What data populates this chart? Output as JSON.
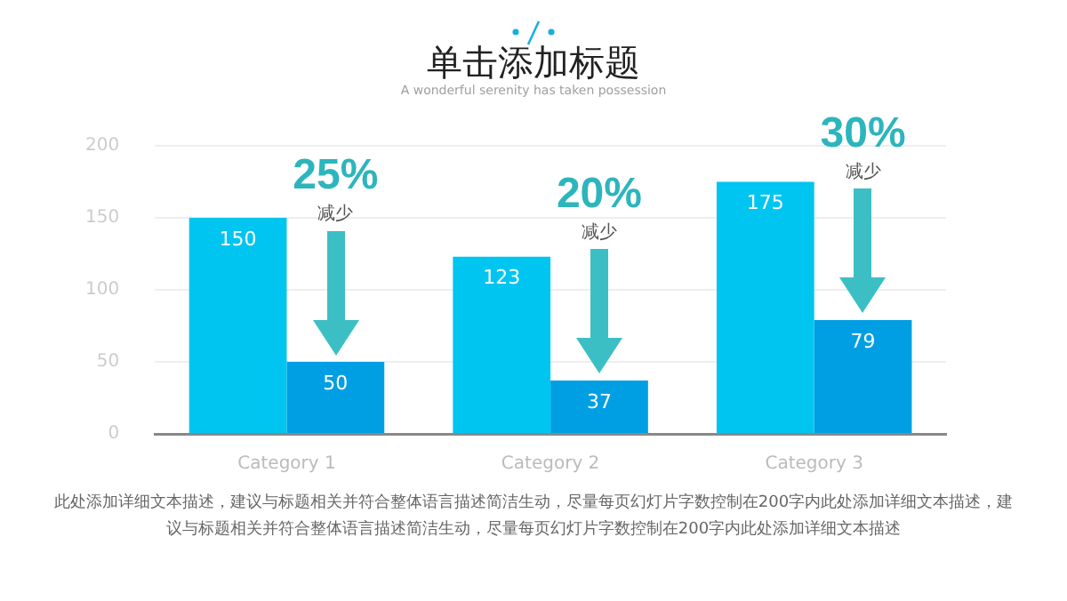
{
  "chart_data": {
    "type": "bar",
    "title": "单击添加标题",
    "subtitle": "A wonderful serenity has taken possession",
    "categories": [
      "Category 1",
      "Category 2",
      "Category 3"
    ],
    "series": [
      {
        "color": "#00c5f0",
        "values": [
          150,
          123,
          175
        ]
      },
      {
        "color": "#009fe3",
        "values": [
          50,
          37,
          79
        ]
      }
    ],
    "ylim": [
      0,
      200
    ],
    "yticks": [
      0,
      50,
      100,
      150,
      200
    ],
    "grid": "y",
    "legend": false,
    "data_labels": true,
    "annotations": [
      "25%",
      "减少",
      "20%",
      "减少",
      "30%",
      "减少",
      "此处添加详细文本描述，建议与标题相关并符合整体语言描述简洁生动，尽量每页幻灯片字数控制在200字内此处添加详细文本描述，建议与标题相关并符合整体语言描述简洁生动，尽量每页幻灯片字数控制在200字内此处添加详细文本描述"
    ]
  }
}
